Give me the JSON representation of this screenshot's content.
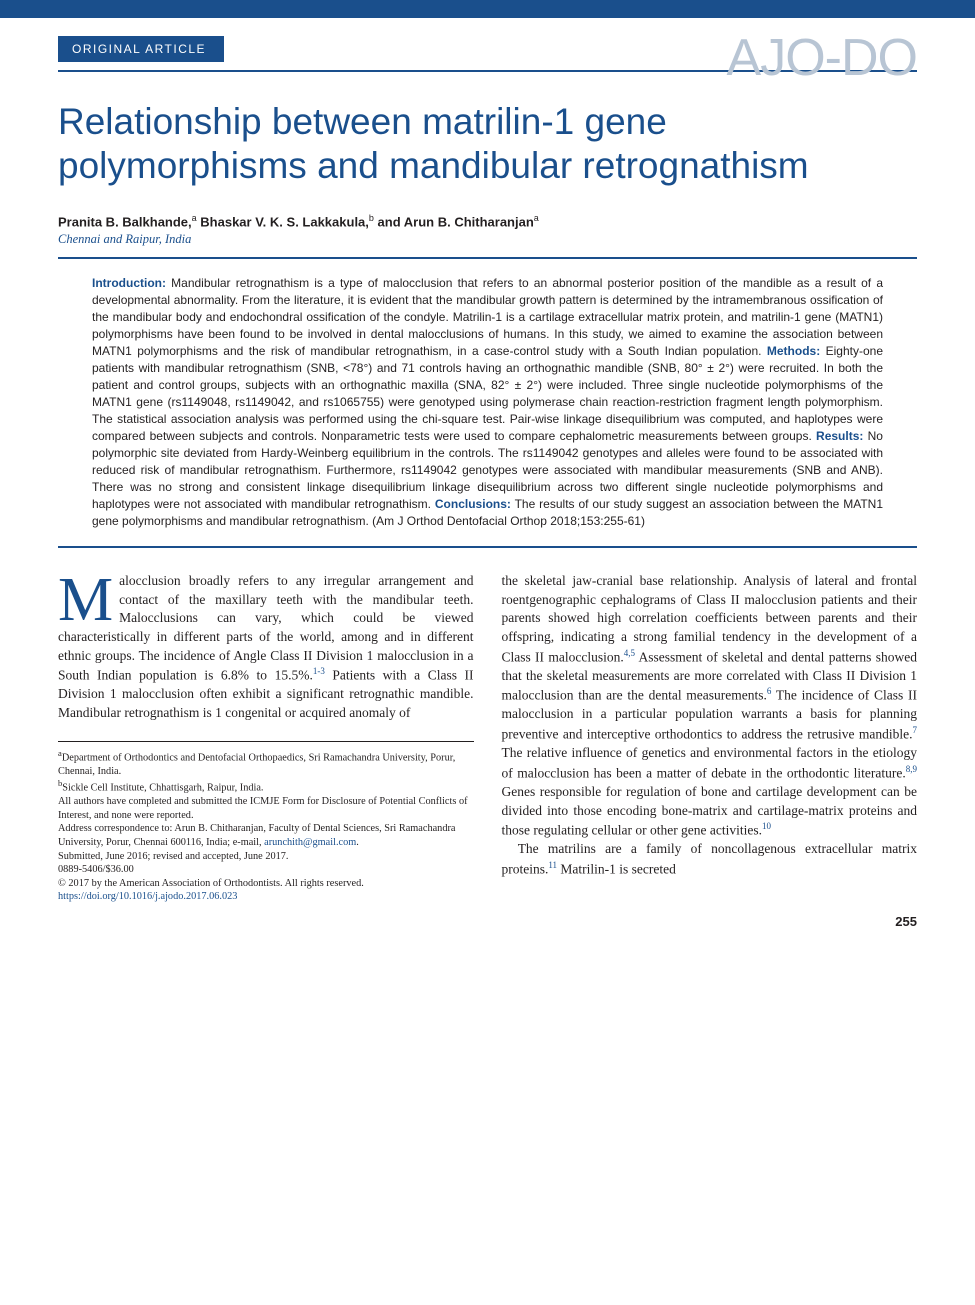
{
  "journal": {
    "logo_text": "AJO-DO",
    "article_type": "ORIGINAL ARTICLE",
    "page_number": "255"
  },
  "colors": {
    "brand": "#1a4f8c",
    "logo_grey": "#b8c5d4",
    "text": "#231f20",
    "bg": "#ffffff"
  },
  "title": "Relationship between matrilin-1 gene polymorphisms and mandibular retrognathism",
  "authors_html": "Pranita B. Balkhande,<sup>a</sup> Bhaskar V. K. S. Lakkakula,<sup>b</sup> and Arun B. Chitharanjan<sup>a</sup>",
  "affiliation_location": "Chennai and Raipur, India",
  "abstract": {
    "intro_hd": "Introduction:",
    "intro": " Mandibular retrognathism is a type of malocclusion that refers to an abnormal posterior position of the mandible as a result of a developmental abnormality. From the literature, it is evident that the mandibular growth pattern is determined by the intramembranous ossification of the mandibular body and endochondral ossification of the condyle. Matrilin-1 is a cartilage extracellular matrix protein, and matrilin-1 gene (MATN1) polymorphisms have been found to be involved in dental malocclusions of humans. In this study, we aimed to examine the association between MATN1 polymorphisms and the risk of mandibular retrognathism, in a case-control study with a South Indian population. ",
    "methods_hd": "Methods:",
    "methods": " Eighty-one patients with mandibular retrognathism (SNB, <78°) and 71 controls having an orthognathic mandible (SNB, 80° ± 2°) were recruited. In both the patient and control groups, subjects with an orthognathic maxilla (SNA, 82° ± 2°) were included. Three single nucleotide polymorphisms of the MATN1 gene (rs1149048, rs1149042, and rs1065755) were genotyped using polymerase chain reaction-restriction fragment length polymorphism. The statistical association analysis was performed using the chi-square test. Pair-wise linkage disequilibrium was computed, and haplotypes were compared between subjects and controls. Nonparametric tests were used to compare cephalometric measurements between groups. ",
    "results_hd": "Results:",
    "results": " No polymorphic site deviated from Hardy-Weinberg equilibrium in the controls. The rs1149042 genotypes and alleles were found to be associated with reduced risk of mandibular retrognathism. Furthermore, rs1149042 genotypes were associated with mandibular measurements (SNB and ANB). There was no strong and consistent linkage disequilibrium linkage disequilibrium across two different single nucleotide polymorphisms and haplotypes were not associated with mandibular retrognathism. ",
    "concl_hd": "Conclusions:",
    "concl": " The results of our study suggest an association between the MATN1 gene polymorphisms and mandibular retrognathism. (Am J Orthod Dentofacial Orthop 2018;153:255-61)"
  },
  "body": {
    "col1_p1_after_dropcap": "alocclusion broadly refers to any irregular arrangement and contact of the maxillary teeth with the mandibular teeth. Malocclusions can vary, which could be viewed characteristically in different parts of the world, among and in different ethnic groups. The incidence of Angle Class II Division 1 malocclusion in a South Indian population is 6.8% to 15.5%.",
    "col1_p1_cite": "1-3",
    "col1_p1_tail": " Patients with a Class II Division 1 malocclusion often exhibit a significant retrognathic mandible. Mandibular retrognathism is 1 congenital or acquired anomaly of",
    "col2_p1": "the skeletal jaw-cranial base relationship. Analysis of lateral and frontal roentgenographic cephalograms of Class II malocclusion patients and their parents showed high correlation coefficients between parents and their offspring, indicating a strong familial tendency in the development of a Class II malocclusion.",
    "col2_c1": "4,5",
    "col2_p2": " Assessment of skeletal and dental patterns showed that the skeletal measurements are more correlated with Class II Division 1 malocclusion than are the dental measurements.",
    "col2_c2": "6",
    "col2_p3": " The incidence of Class II malocclusion in a particular population warrants a basis for planning preventive and interceptive orthodontics to address the retrusive mandible.",
    "col2_c3": "7",
    "col2_p4": " The relative influence of genetics and environmental factors in the etiology of malocclusion has been a matter of debate in the orthodontic literature.",
    "col2_c4": "8,9",
    "col2_p5": " Genes responsible for regulation of bone and cartilage development can be divided into those encoding bone-matrix and cartilage-matrix proteins and those regulating cellular or other gene activities.",
    "col2_c5": "10",
    "col2_p6_pre": "The matrilins are a family of noncollagenous extracellular matrix proteins.",
    "col2_c6": "11",
    "col2_p6_post": " Matrilin-1 is secreted"
  },
  "footnotes": {
    "a": "Department of Orthodontics and Dentofacial Orthopaedics, Sri Ramachandra University, Porur, Chennai, India.",
    "b": "Sickle Cell Institute, Chhattisgarh, Raipur, India.",
    "coi": "All authors have completed and submitted the ICMJE Form for Disclosure of Potential Conflicts of Interest, and none were reported.",
    "corr_pre": "Address correspondence to: Arun B. Chitharanjan, Faculty of Dental Sciences, Sri Ramachandra University, Porur, Chennai 600116, India; e-mail, ",
    "corr_email": "arunchith@gmail.com",
    "corr_post": ".",
    "submitted": "Submitted, June 2016; revised and accepted, June 2017.",
    "issn": "0889-5406/$36.00",
    "copyright": "© 2017 by the American Association of Orthodontists. All rights reserved.",
    "doi": "https://doi.org/10.1016/j.ajodo.2017.06.023"
  }
}
